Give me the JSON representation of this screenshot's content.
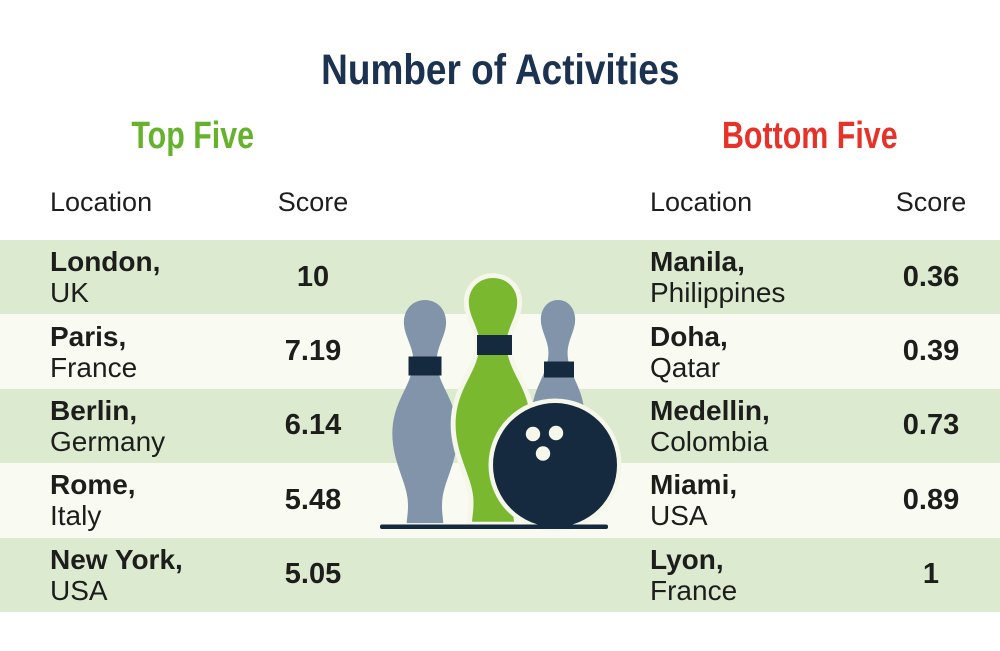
{
  "title": {
    "text": "Number of Activities"
  },
  "sections": {
    "top": {
      "heading": "Top Five",
      "columns": {
        "location": "Location",
        "score": "Score"
      },
      "rows": [
        {
          "city": "London,",
          "country": "UK",
          "score": "10"
        },
        {
          "city": "Paris,",
          "country": "France",
          "score": "7.19"
        },
        {
          "city": "Berlin,",
          "country": "Germany",
          "score": "6.14"
        },
        {
          "city": "Rome,",
          "country": "Italy",
          "score": "5.48"
        },
        {
          "city": "New York,",
          "country": "USA",
          "score": "5.05"
        }
      ]
    },
    "bottom": {
      "heading": "Bottom Five",
      "columns": {
        "location": "Location",
        "score": "Score"
      },
      "rows": [
        {
          "city": "Manila,",
          "country": "Philippines",
          "score": "0.36"
        },
        {
          "city": "Doha,",
          "country": "Qatar",
          "score": "0.39"
        },
        {
          "city": "Medellin,",
          "country": "Colombia",
          "score": "0.73"
        },
        {
          "city": "Miami,",
          "country": "USA",
          "score": "0.89"
        },
        {
          "city": "Lyon,",
          "country": "France",
          "score": "1"
        }
      ]
    }
  },
  "illustration": {
    "name": "bowling-pins-and-ball"
  },
  "colors": {
    "title_navy": "#1b3350",
    "top_five_green": "#67b22d",
    "bottom_five_red": "#e63329",
    "stripe_green": "#dcead0",
    "stripe_offwhite": "#f9fbf2",
    "pin_gray": "#8194a9",
    "pin_green": "#7ab92f",
    "illustration_navy": "#15293f",
    "cream": "#f4f7ea",
    "body_text": "#1d1d1b"
  },
  "chart_data": {
    "type": "table",
    "title": "Number of Activities",
    "series": [
      {
        "name": "Top Five",
        "columns": [
          "Location",
          "Score"
        ],
        "categories": [
          "London, UK",
          "Paris, France",
          "Berlin, Germany",
          "Rome, Italy",
          "New York, USA"
        ],
        "values": [
          10,
          7.19,
          6.14,
          5.48,
          5.05
        ]
      },
      {
        "name": "Bottom Five",
        "columns": [
          "Location",
          "Score"
        ],
        "categories": [
          "Manila, Philippines",
          "Doha, Qatar",
          "Medellin, Colombia",
          "Miami, USA",
          "Lyon, France"
        ],
        "values": [
          0.36,
          0.39,
          0.73,
          0.89,
          1
        ]
      }
    ]
  }
}
